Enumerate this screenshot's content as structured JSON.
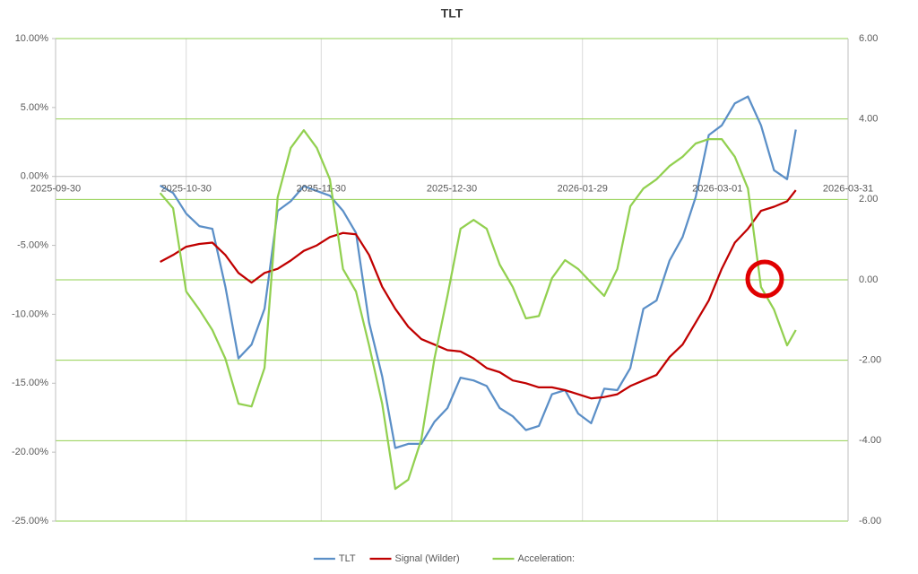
{
  "chart_data": {
    "type": "line",
    "title": "TLT",
    "x": [
      "2025-10-24",
      "2025-10-27",
      "2025-10-30",
      "2025-11-02",
      "2025-11-05",
      "2025-11-08",
      "2025-11-11",
      "2025-11-14",
      "2025-11-17",
      "2025-11-20",
      "2025-11-23",
      "2025-11-26",
      "2025-11-29",
      "2025-12-02",
      "2025-12-05",
      "2025-12-08",
      "2025-12-11",
      "2025-12-14",
      "2025-12-17",
      "2025-12-20",
      "2025-12-23",
      "2025-12-26",
      "2025-12-29",
      "2026-01-01",
      "2026-01-04",
      "2026-01-07",
      "2026-01-10",
      "2026-01-13",
      "2026-01-16",
      "2026-01-19",
      "2026-01-22",
      "2026-01-25",
      "2026-01-28",
      "2026-01-31",
      "2026-02-03",
      "2026-02-06",
      "2026-02-09",
      "2026-02-12",
      "2026-02-15",
      "2026-02-18",
      "2026-02-21",
      "2026-02-24",
      "2026-02-27",
      "2026-03-02",
      "2026-03-05",
      "2026-03-08",
      "2026-03-11",
      "2026-03-14",
      "2026-03-17",
      "2026-03-19"
    ],
    "series": [
      {
        "name": "TLT",
        "color": "#5b8fc7",
        "values": [
          -0.66,
          -1.2,
          -2.7,
          -3.6,
          -3.8,
          -8.0,
          -13.2,
          -12.2,
          -9.6,
          -2.5,
          -1.8,
          -0.7,
          -1.05,
          -1.4,
          -2.5,
          -4.1,
          -10.6,
          -14.5,
          -19.7,
          -19.4,
          -19.4,
          -17.8,
          -16.8,
          -14.6,
          -14.8,
          -15.2,
          -16.8,
          -17.4,
          -18.4,
          -18.1,
          -15.8,
          -15.5,
          -17.2,
          -17.9,
          -15.4,
          -15.5,
          -13.9,
          -9.6,
          -9.0,
          -6.1,
          -4.4,
          -1.5,
          3.0,
          3.7,
          5.3,
          5.8,
          3.7,
          0.45,
          -0.2,
          3.4
        ]
      },
      {
        "name": "Signal (Wilder)",
        "color": "#c00000",
        "values": [
          -6.2,
          -5.7,
          -5.1,
          -4.9,
          -4.8,
          -5.7,
          -7.0,
          -7.7,
          -7.0,
          -6.7,
          -6.1,
          -5.4,
          -5.0,
          -4.4,
          -4.1,
          -4.2,
          -5.7,
          -8.0,
          -9.6,
          -10.9,
          -11.8,
          -12.2,
          -12.6,
          -12.7,
          -13.2,
          -13.9,
          -14.2,
          -14.8,
          -15.0,
          -15.3,
          -15.3,
          -15.5,
          -15.8,
          -16.1,
          -16.0,
          -15.8,
          -15.2,
          -14.8,
          -14.4,
          -13.1,
          -12.2,
          -10.6,
          -9.0,
          -6.7,
          -4.8,
          -3.8,
          -2.5,
          -2.2,
          -1.8,
          -1.0
        ]
      },
      {
        "name": "Acceleration:",
        "color": "#92d050",
        "axis": "y2",
        "values": [
          2.16,
          1.78,
          -0.29,
          -0.74,
          -1.25,
          -1.96,
          -3.08,
          -3.15,
          -2.19,
          2.05,
          3.28,
          3.72,
          3.28,
          2.5,
          0.27,
          -0.29,
          -1.63,
          -3.08,
          -5.2,
          -4.97,
          -3.97,
          -1.96,
          -0.4,
          1.27,
          1.49,
          1.27,
          0.38,
          -0.18,
          -0.96,
          -0.9,
          0.04,
          0.49,
          0.27,
          -0.07,
          -0.4,
          0.27,
          1.83,
          2.27,
          2.5,
          2.83,
          3.06,
          3.39,
          3.5,
          3.5,
          3.06,
          2.27,
          -0.18,
          -0.74,
          -1.63,
          -1.25
        ]
      }
    ],
    "xlim": [
      "2025-09-30",
      "2026-03-31"
    ],
    "xticks": [
      "2025-09-30",
      "2025-10-30",
      "2025-11-30",
      "2025-12-30",
      "2026-01-29",
      "2026-03-01",
      "2026-03-31"
    ],
    "ylim": [
      -25,
      10
    ],
    "yticks": [
      {
        "value": 10,
        "label": "10.00%"
      },
      {
        "value": 5,
        "label": "5.00%"
      },
      {
        "value": 0,
        "label": "0.00%"
      },
      {
        "value": -5,
        "label": "-5.00%"
      },
      {
        "value": -10,
        "label": "-10.00%"
      },
      {
        "value": -15,
        "label": "-15.00%"
      },
      {
        "value": -20,
        "label": "-20.00%"
      },
      {
        "value": -25,
        "label": "-25.00%"
      }
    ],
    "y2lim": [
      -6,
      6
    ],
    "y2ticks": [
      {
        "value": 6,
        "label": "6.00"
      },
      {
        "value": 4,
        "label": "4.00"
      },
      {
        "value": 2,
        "label": "2.00"
      },
      {
        "value": 0,
        "label": "0.00"
      },
      {
        "value": -2,
        "label": "-2.00"
      },
      {
        "value": -4,
        "label": "-4.00"
      },
      {
        "value": -6,
        "label": "-6.00"
      }
    ],
    "y2grid_color": "#92d050",
    "xgrid": true,
    "legend": "bottom"
  }
}
